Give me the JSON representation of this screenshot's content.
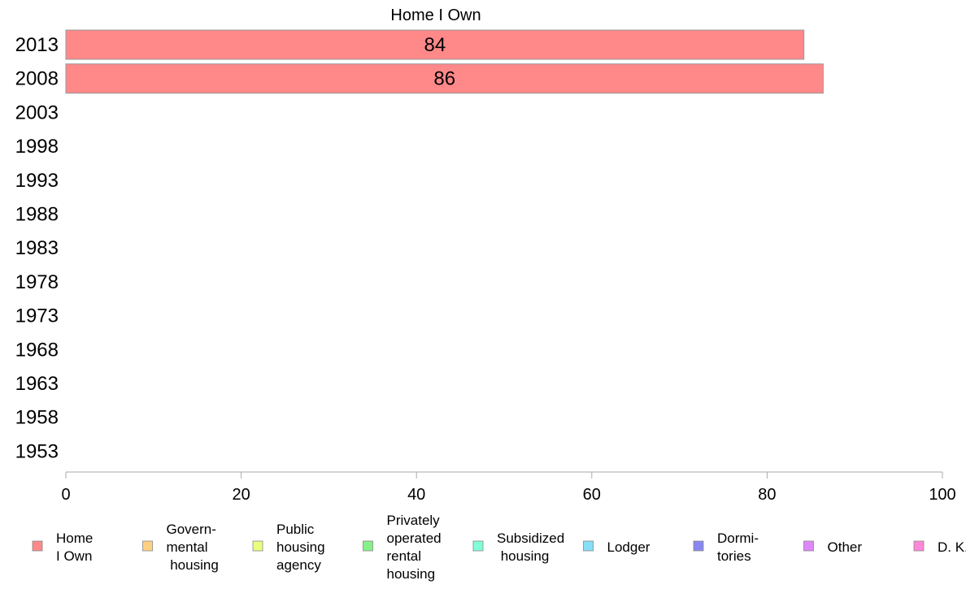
{
  "chart_data": {
    "type": "bar",
    "orientation": "horizontal",
    "title": "Home I Own",
    "xlabel": "",
    "ylabel": "",
    "categories": [
      "2013",
      "2008",
      "2003",
      "1998",
      "1993",
      "1988",
      "1983",
      "1978",
      "1973",
      "1968",
      "1963",
      "1958",
      "1953"
    ],
    "values": [
      84.2,
      86.4,
      null,
      null,
      null,
      null,
      null,
      null,
      null,
      null,
      null,
      null,
      null
    ],
    "data_labels": [
      "84",
      "86",
      "",
      "",
      "",
      "",
      "",
      "",
      "",
      "",
      "",
      "",
      ""
    ],
    "xlim": [
      0,
      100
    ],
    "xticks": [
      "0",
      "20",
      "40",
      "60",
      "80",
      "100"
    ],
    "bar_color": "#ff8888",
    "bar_stroke": "#999999",
    "grid": false,
    "legend": {
      "placement": "bottom",
      "entries": [
        {
          "lines": [
            "Home",
            "I Own"
          ],
          "color": "#ff8888"
        },
        {
          "lines": [
            "Govern-",
            "mental",
            " housing"
          ],
          "color": "#ffd080"
        },
        {
          "lines": [
            "Public",
            "housing",
            "agency"
          ],
          "color": "#e8ff80"
        },
        {
          "lines": [
            "Privately",
            "operated",
            "rental",
            "housing"
          ],
          "color": "#88f088"
        },
        {
          "lines": [
            "Subsidized",
            " housing"
          ],
          "color": "#80ffd8"
        },
        {
          "lines": [
            "Lodger"
          ],
          "color": "#88ddf8"
        },
        {
          "lines": [
            "Dormi-",
            "tories"
          ],
          "color": "#8888f0"
        },
        {
          "lines": [
            "Other"
          ],
          "color": "#dd88f8"
        },
        {
          "lines": [
            "D. K."
          ],
          "color": "#ff88d8"
        }
      ]
    }
  }
}
